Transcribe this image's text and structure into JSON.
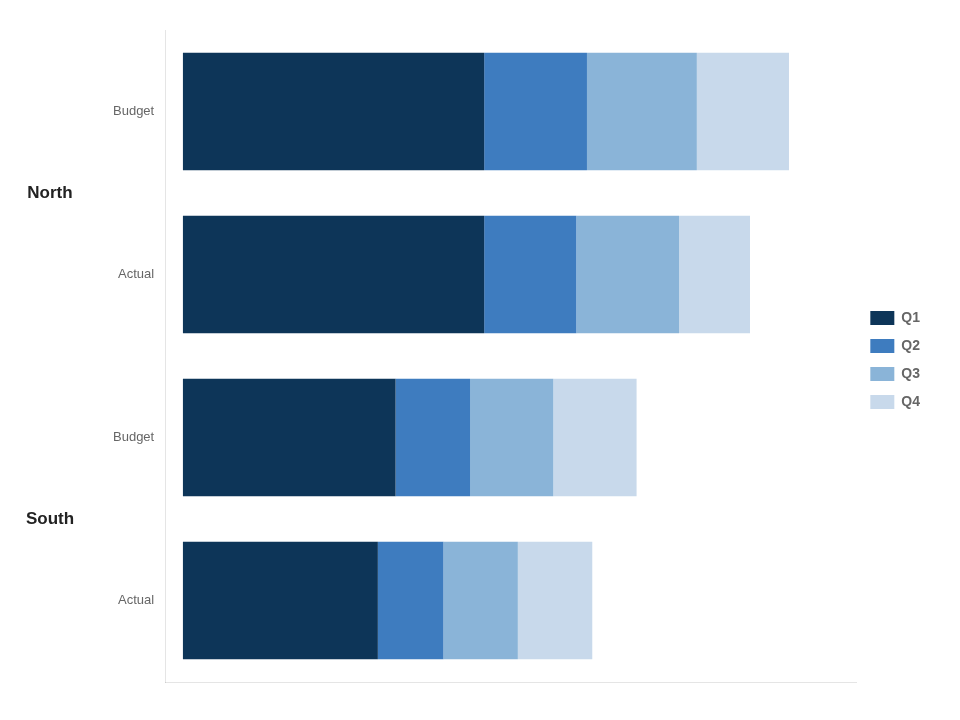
{
  "chart_data": {
    "type": "bar",
    "orientation": "horizontal",
    "stacked": true,
    "categories": [
      "Budget",
      "Actual",
      "Budget",
      "Actual"
    ],
    "groups": [
      "North",
      "South"
    ],
    "series": [
      {
        "name": "Q1",
        "color": "#0d3558",
        "values": [
          170,
          170,
          120,
          110
        ]
      },
      {
        "name": "Q2",
        "color": "#3e7cbf",
        "values": [
          58,
          52,
          42,
          37
        ]
      },
      {
        "name": "Q3",
        "color": "#8ab4d8",
        "values": [
          62,
          58,
          47,
          42
        ]
      },
      {
        "name": "Q4",
        "color": "#c8d9eb",
        "values": [
          52,
          40,
          47,
          42
        ]
      }
    ],
    "xlim": [
      -10,
      380
    ],
    "tick_labels": "y",
    "grid": false,
    "legend": "right"
  }
}
